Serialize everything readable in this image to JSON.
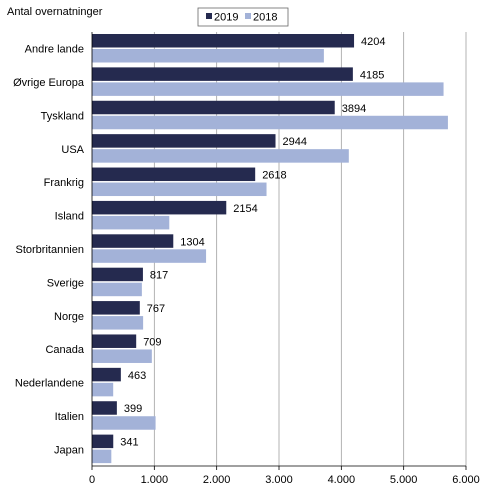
{
  "chart_data": {
    "type": "bar",
    "orientation": "horizontal",
    "title": "",
    "ylabel": "Antal overnatninger",
    "xlabel": "",
    "categories": [
      "Andre lande",
      "Øvrige Europa",
      "Tyskland",
      "USA",
      "Frankrig",
      "Island",
      "Storbritannien",
      "Sverige",
      "Norge",
      "Canada",
      "Nederlandene",
      "Italien",
      "Japan"
    ],
    "series": [
      {
        "name": "2019",
        "color": "#252a4f",
        "values": [
          4204,
          4185,
          3894,
          2944,
          2618,
          2154,
          1304,
          817,
          767,
          709,
          463,
          399,
          341
        ],
        "data_labels": [
          "4204",
          "4185",
          "3894",
          "2944",
          "2618",
          "2154",
          "1304",
          "817",
          "767",
          "709",
          "463",
          "399",
          "341"
        ]
      },
      {
        "name": "2018",
        "color": "#a3b2d8",
        "values": [
          3720,
          5640,
          5710,
          4120,
          2800,
          1240,
          1830,
          800,
          820,
          960,
          340,
          1020,
          310
        ]
      }
    ],
    "xlim": [
      0,
      6000
    ],
    "x_ticks": [
      0,
      1000,
      2000,
      3000,
      4000,
      5000,
      6000
    ],
    "x_tick_labels": [
      "0",
      "1.000",
      "2.000",
      "3.000",
      "4.000",
      "5.000",
      "6.000"
    ],
    "grid": "vertical",
    "legend_position": "top-center"
  }
}
